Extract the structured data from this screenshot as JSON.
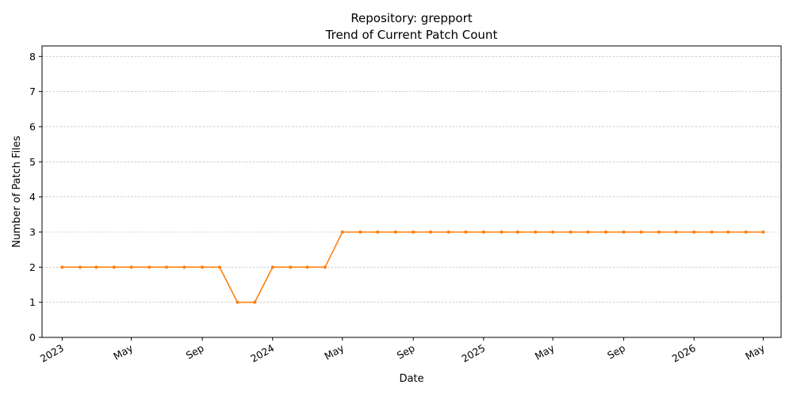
{
  "chart_data": {
    "type": "line",
    "title": "Repository: grepport",
    "subtitle": "Trend of Current Patch Count",
    "xlabel": "Date",
    "ylabel": "Number of Patch Files",
    "ylim": [
      0,
      8.3
    ],
    "yticks": [
      0,
      1,
      2,
      3,
      4,
      5,
      6,
      7,
      8
    ],
    "xlim": [
      "2022-11-27",
      "2026-06-01"
    ],
    "xticks": [
      {
        "date": "2023-01-01",
        "label": "2023"
      },
      {
        "date": "2023-05-01",
        "label": "May"
      },
      {
        "date": "2023-09-01",
        "label": "Sep"
      },
      {
        "date": "2024-01-01",
        "label": "2024"
      },
      {
        "date": "2024-05-01",
        "label": "May"
      },
      {
        "date": "2024-09-01",
        "label": "Sep"
      },
      {
        "date": "2025-01-01",
        "label": "2025"
      },
      {
        "date": "2025-05-01",
        "label": "May"
      },
      {
        "date": "2025-09-01",
        "label": "Sep"
      },
      {
        "date": "2026-01-01",
        "label": "2026"
      },
      {
        "date": "2026-05-01",
        "label": "May"
      }
    ],
    "grid": {
      "y": true,
      "x": false
    },
    "series": [
      {
        "color": "#ff7f0e",
        "x": [
          "2023-01-01",
          "2023-02-01",
          "2023-03-01",
          "2023-04-01",
          "2023-05-01",
          "2023-06-01",
          "2023-07-01",
          "2023-08-01",
          "2023-09-01",
          "2023-10-01",
          "2023-11-01",
          "2023-12-01",
          "2024-01-01",
          "2024-02-01",
          "2024-03-01",
          "2024-04-01",
          "2024-05-01",
          "2024-06-01",
          "2024-07-01",
          "2024-08-01",
          "2024-09-01",
          "2024-10-01",
          "2024-11-01",
          "2024-12-01",
          "2025-01-01",
          "2025-02-01",
          "2025-03-01",
          "2025-04-01",
          "2025-05-01",
          "2025-06-01",
          "2025-07-01",
          "2025-08-01",
          "2025-09-01",
          "2025-10-01",
          "2025-11-01",
          "2025-12-01",
          "2026-01-01",
          "2026-02-01",
          "2026-03-01",
          "2026-04-01",
          "2026-05-01"
        ],
        "y": [
          2,
          2,
          2,
          2,
          2,
          2,
          2,
          2,
          2,
          2,
          1,
          1,
          2,
          2,
          2,
          2,
          3,
          3,
          3,
          3,
          3,
          3,
          3,
          3,
          3,
          3,
          3,
          3,
          3,
          3,
          3,
          3,
          3,
          3,
          3,
          3,
          3,
          3,
          3,
          3,
          3
        ]
      }
    ]
  }
}
